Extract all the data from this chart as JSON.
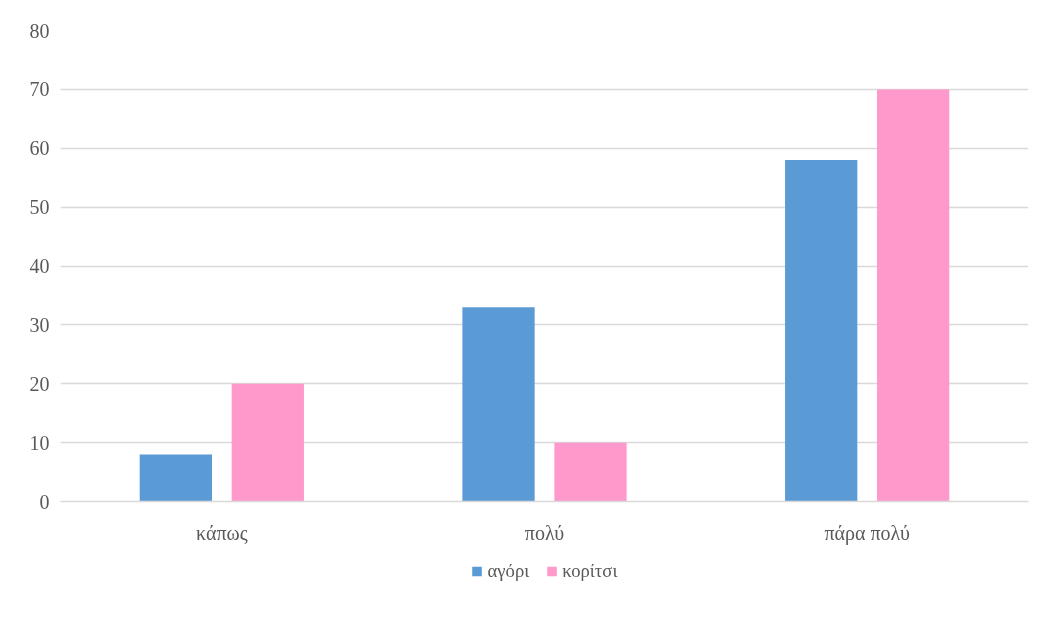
{
  "chart_data": {
    "type": "bar",
    "categories": [
      "κάπως",
      "πολύ",
      "πάρα πολύ"
    ],
    "series": [
      {
        "name": "αγόρι",
        "color": "#5b9bd5",
        "values": [
          8,
          33,
          58
        ]
      },
      {
        "name": "κορίτσι",
        "color": "#ff99cc",
        "values": [
          20,
          10,
          70
        ]
      }
    ],
    "ylim": [
      0,
      80
    ],
    "yticks": [
      0,
      10,
      20,
      30,
      40,
      50,
      60,
      70,
      80
    ],
    "grid": "y",
    "legend": "bottom"
  }
}
